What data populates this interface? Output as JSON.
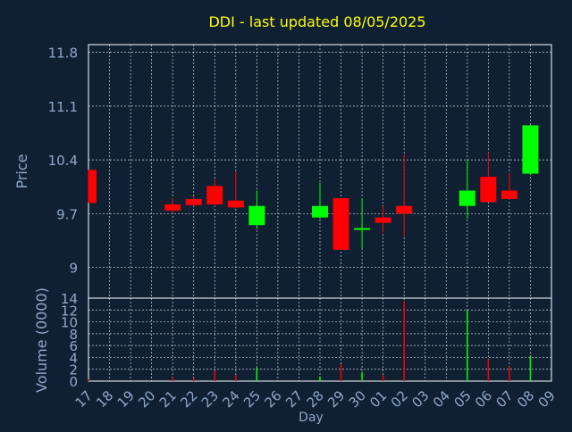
{
  "chart_data": [
    {
      "type": "candlestick",
      "title": "DDI - last updated 08/05/2025",
      "ylabel": "Price",
      "ylim": [
        8.6,
        11.9
      ],
      "y_ticks": [
        9,
        9.7,
        10.4,
        11.1,
        11.8
      ],
      "y_tick_labels": [
        "9",
        "9.7",
        "10.4",
        "11.1",
        "11.8"
      ],
      "grid": true,
      "colors": {
        "up": "#00ff00",
        "down": "#ff0000",
        "title": "#ffff00",
        "axis": "#8fa8c8",
        "background": "#0f2033",
        "grid": "#ffffff"
      },
      "candles": [
        {
          "day": "17",
          "open": 10.27,
          "close": 9.84,
          "high": 10.27,
          "low": 9.84
        },
        {
          "day": "21",
          "open": 9.82,
          "close": 9.74,
          "high": 9.9,
          "low": 9.7
        },
        {
          "day": "22",
          "open": 9.89,
          "close": 9.81,
          "high": 9.92,
          "low": 9.8
        },
        {
          "day": "23",
          "open": 10.06,
          "close": 9.82,
          "high": 10.15,
          "low": 9.8
        },
        {
          "day": "24",
          "open": 9.87,
          "close": 9.78,
          "high": 10.25,
          "low": 9.77
        },
        {
          "day": "25",
          "open": 9.55,
          "close": 9.8,
          "high": 10.0,
          "low": 9.5
        },
        {
          "day": "28",
          "open": 9.65,
          "close": 9.8,
          "high": 10.1,
          "low": 9.63
        },
        {
          "day": "29",
          "open": 9.9,
          "close": 9.23,
          "high": 9.9,
          "low": 9.23
        },
        {
          "day": "30",
          "open": 9.48,
          "close": 9.5,
          "high": 9.9,
          "low": 9.25
        },
        {
          "day": "01",
          "open": 9.65,
          "close": 9.58,
          "high": 9.8,
          "low": 9.45
        },
        {
          "day": "02",
          "open": 9.8,
          "close": 9.7,
          "high": 10.47,
          "low": 9.4
        },
        {
          "day": "05",
          "open": 9.8,
          "close": 10.0,
          "high": 10.4,
          "low": 9.63
        },
        {
          "day": "06",
          "open": 10.18,
          "close": 9.85,
          "high": 10.5,
          "low": 9.85
        },
        {
          "day": "07",
          "open": 10.0,
          "close": 9.89,
          "high": 10.23,
          "low": 9.88
        },
        {
          "day": "08",
          "open": 10.22,
          "close": 10.85,
          "high": 10.85,
          "low": 10.2
        }
      ]
    },
    {
      "type": "bar",
      "ylabel": "Volume (0000)",
      "xlabel": "Day",
      "ylim": [
        0,
        14
      ],
      "y_ticks": [
        0,
        2,
        4,
        6,
        8,
        10,
        12,
        14
      ],
      "y_tick_labels": [
        "0",
        "2",
        "4",
        "6",
        "8",
        "10",
        "12",
        "14"
      ],
      "categories": [
        "17",
        "18",
        "19",
        "20",
        "21",
        "22",
        "23",
        "24",
        "25",
        "26",
        "27",
        "28",
        "29",
        "30",
        "01",
        "02",
        "03",
        "04",
        "05",
        "06",
        "07",
        "08",
        "09"
      ],
      "grid": true,
      "bars": [
        {
          "day": "17",
          "value": 0.3,
          "direction": "down"
        },
        {
          "day": "21",
          "value": 0.7,
          "direction": "down"
        },
        {
          "day": "22",
          "value": 0.5,
          "direction": "down"
        },
        {
          "day": "23",
          "value": 1.8,
          "direction": "down"
        },
        {
          "day": "24",
          "value": 1.0,
          "direction": "down"
        },
        {
          "day": "25",
          "value": 2.3,
          "direction": "up"
        },
        {
          "day": "28",
          "value": 0.8,
          "direction": "up"
        },
        {
          "day": "29",
          "value": 2.8,
          "direction": "down"
        },
        {
          "day": "30",
          "value": 1.5,
          "direction": "up"
        },
        {
          "day": "01",
          "value": 1.0,
          "direction": "down"
        },
        {
          "day": "02",
          "value": 13.5,
          "direction": "down"
        },
        {
          "day": "05",
          "value": 12.0,
          "direction": "up"
        },
        {
          "day": "06",
          "value": 3.7,
          "direction": "down"
        },
        {
          "day": "07",
          "value": 2.5,
          "direction": "down"
        },
        {
          "day": "08",
          "value": 4.2,
          "direction": "up"
        }
      ]
    }
  ]
}
